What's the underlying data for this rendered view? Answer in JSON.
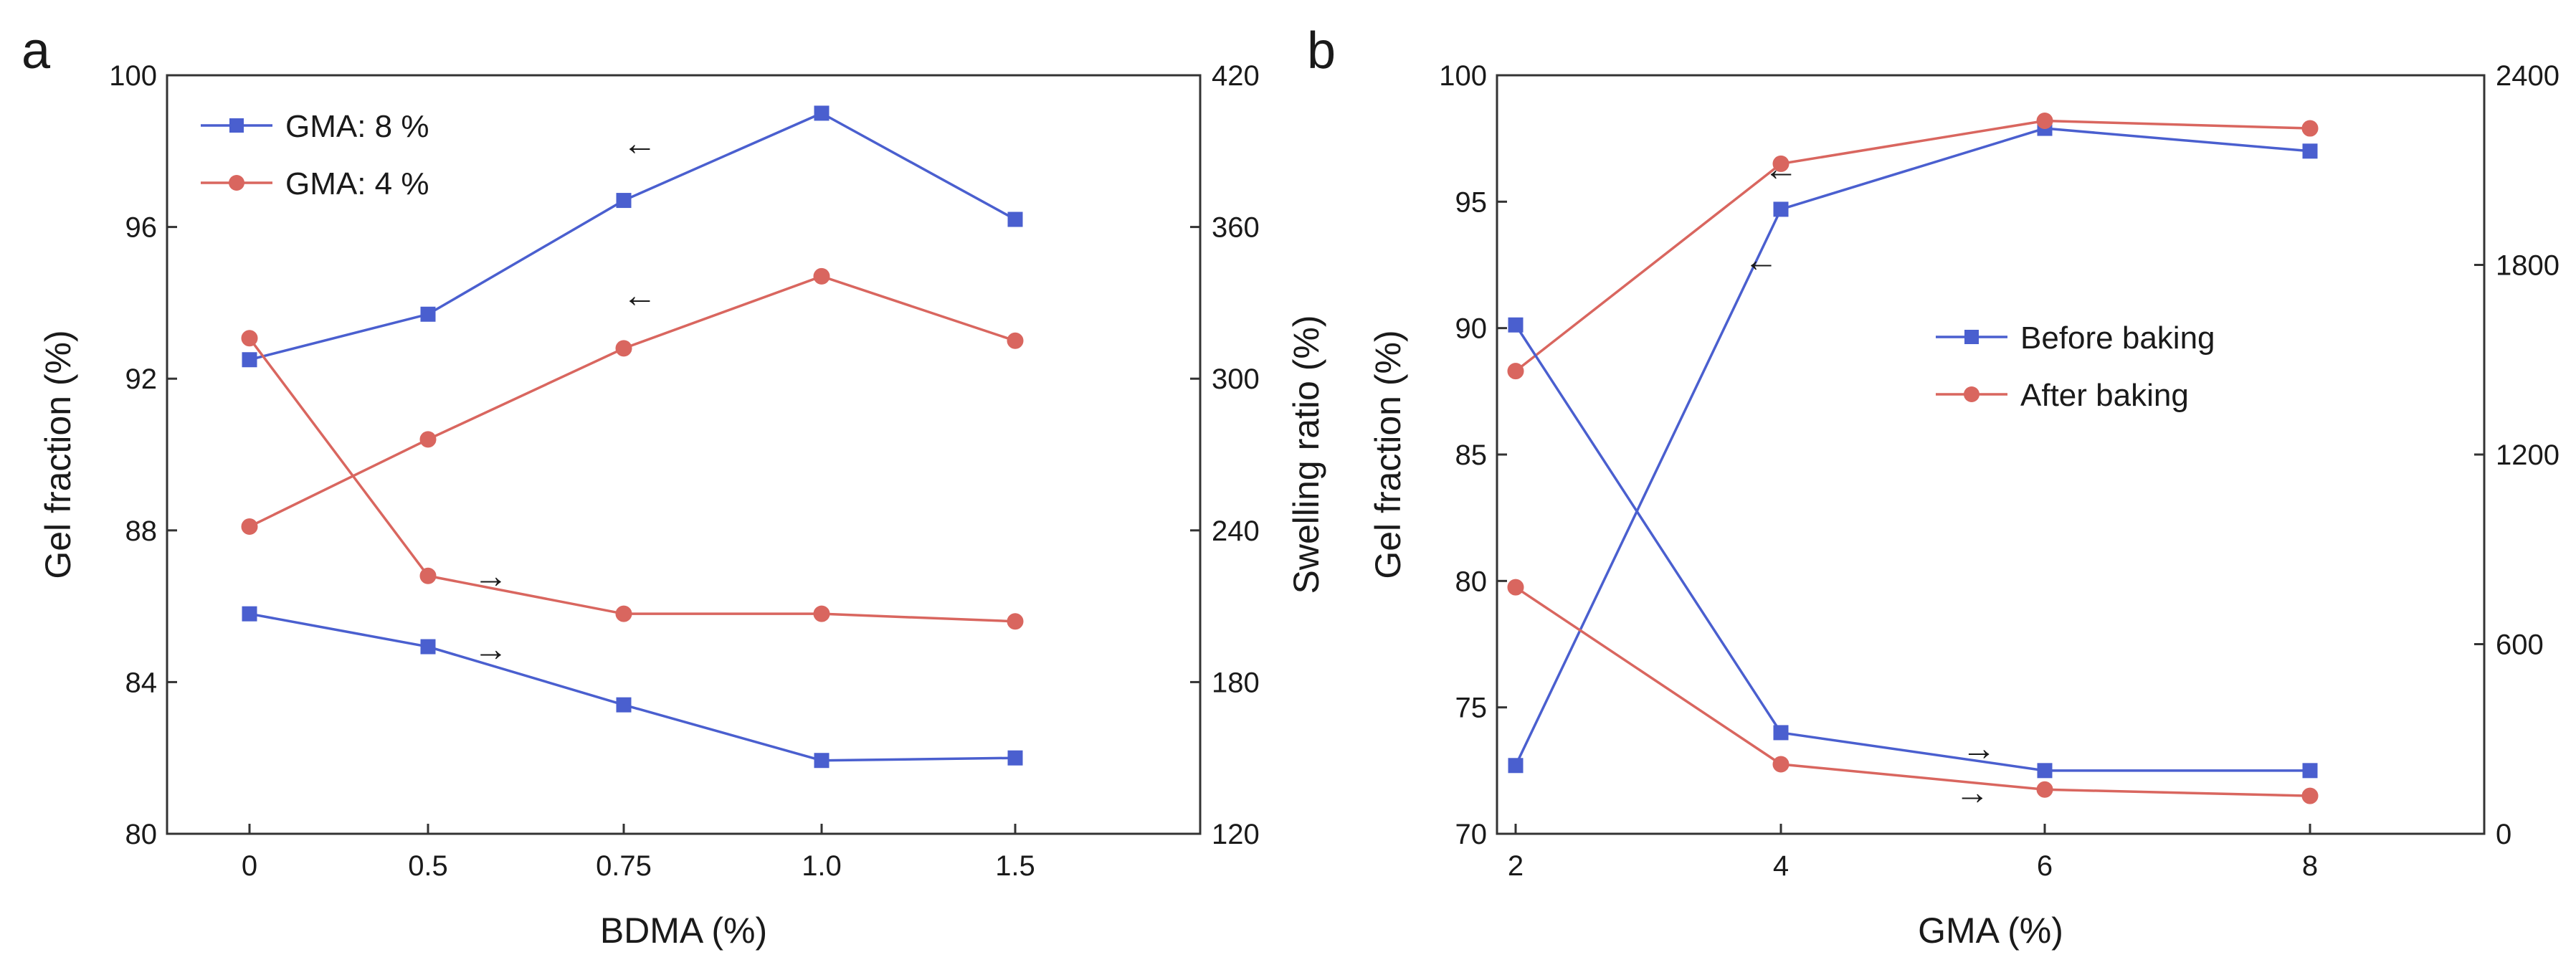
{
  "colors": {
    "blue": "#4a5fcf",
    "red": "#d9665f",
    "axis": "#333333"
  },
  "chart_data": [
    {
      "panel": "a",
      "type": "line",
      "xlabel": "BDMA (%)",
      "ylabel": "Gel fraction (%)",
      "y2label": "Swelling ratio (%)",
      "categories": [
        "0",
        "0.5",
        "0.75",
        "1.0",
        "1.5"
      ],
      "ylim": [
        80,
        100
      ],
      "y2lim": [
        120,
        420
      ],
      "yticks": [
        "80",
        "84",
        "88",
        "92",
        "96",
        "100"
      ],
      "y2ticks": [
        "120",
        "180",
        "240",
        "300",
        "360",
        "420"
      ],
      "legend_position": "top-left",
      "series": [
        {
          "name": "GMA: 8 %",
          "color": "blue",
          "marker": "square",
          "axis": "left",
          "values": [
            92.5,
            93.7,
            96.7,
            99.0,
            96.2
          ]
        },
        {
          "name": "GMA: 4 %",
          "color": "red",
          "marker": "circle",
          "axis": "left",
          "values": [
            88.1,
            90.4,
            92.8,
            94.7,
            93.0
          ]
        },
        {
          "name": "",
          "color": "red",
          "marker": "circle",
          "axis": "right",
          "values": [
            316,
            222,
            207,
            207,
            204
          ]
        },
        {
          "name": "",
          "color": "blue",
          "marker": "square",
          "axis": "right",
          "values": [
            207,
            194,
            171,
            149,
            150
          ]
        }
      ],
      "annotations": [
        {
          "text": "←",
          "x": 0.77,
          "y": 98.2,
          "axis": "left"
        },
        {
          "text": "←",
          "x": 0.77,
          "y": 94.2,
          "axis": "left"
        },
        {
          "text": "→",
          "x": 0.58,
          "y": 222,
          "axis": "right"
        },
        {
          "text": "→",
          "x": 0.58,
          "y": 193,
          "axis": "right"
        }
      ]
    },
    {
      "panel": "b",
      "type": "line",
      "xlabel": "GMA (%)",
      "ylabel": "Gel fraction (%)",
      "y2label": "Swelling ratio (%)",
      "categories": [
        "2",
        "4",
        "6",
        "8"
      ],
      "ylim": [
        70,
        100
      ],
      "y2lim": [
        0,
        2400
      ],
      "yticks": [
        "70",
        "75",
        "80",
        "85",
        "90",
        "95",
        "100"
      ],
      "y2ticks": [
        "0",
        "600",
        "1200",
        "1800",
        "2400"
      ],
      "legend_position": "center-right",
      "series": [
        {
          "name": "Before baking",
          "color": "blue",
          "marker": "square",
          "axis": "left",
          "values": [
            72.7,
            94.7,
            97.9,
            97.0
          ]
        },
        {
          "name": "After baking",
          "color": "red",
          "marker": "circle",
          "axis": "left",
          "values": [
            88.3,
            96.5,
            98.2,
            97.9
          ]
        },
        {
          "name": "",
          "color": "blue",
          "marker": "square",
          "axis": "right",
          "values": [
            1610,
            320,
            200,
            200
          ]
        },
        {
          "name": "",
          "color": "red",
          "marker": "circle",
          "axis": "right",
          "values": [
            780,
            220,
            140,
            120
          ]
        }
      ],
      "annotations": [
        {
          "text": "←",
          "x": 4.0,
          "y": 96.3,
          "axis": "left"
        },
        {
          "text": "←",
          "x": 3.85,
          "y": 92.7,
          "axis": "left"
        },
        {
          "text": "→",
          "x": 5.5,
          "y": 270,
          "axis": "right"
        },
        {
          "text": "→",
          "x": 5.45,
          "y": 130,
          "axis": "right"
        }
      ]
    }
  ]
}
